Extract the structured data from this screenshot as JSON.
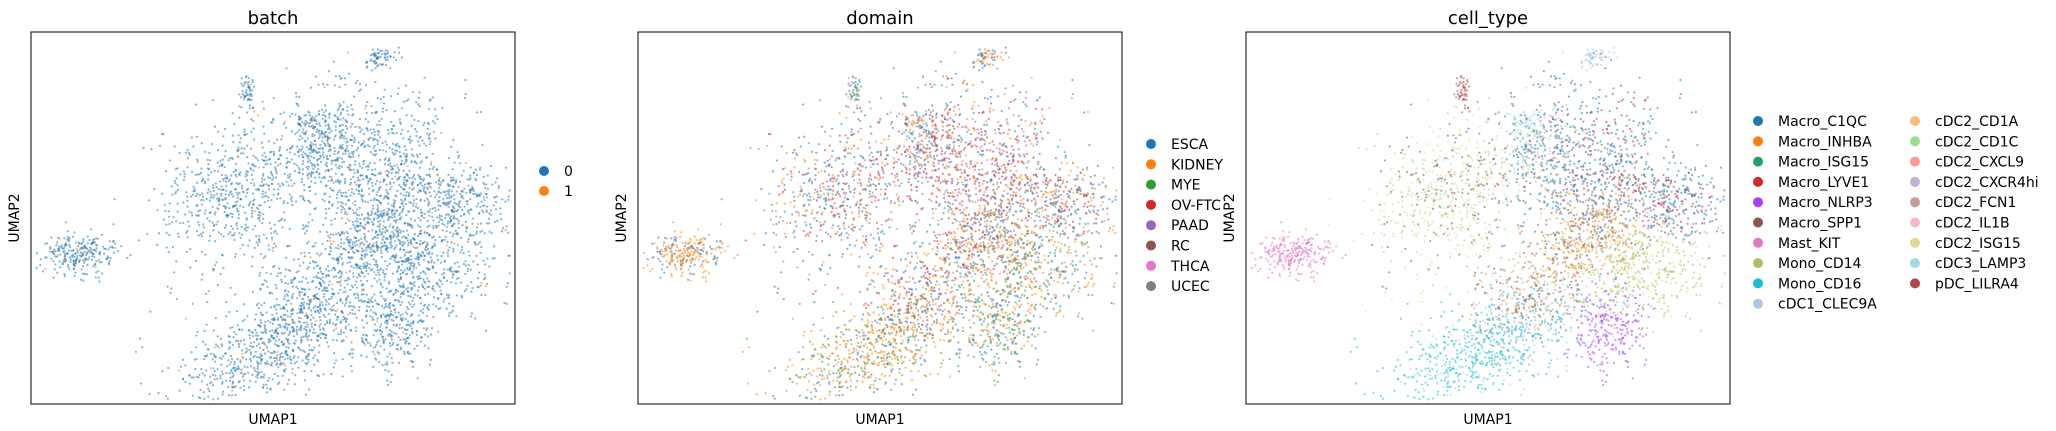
{
  "chart_data": [
    {
      "type": "scatter",
      "title": "batch",
      "xlabel": "UMAP1",
      "ylabel": "UMAP2",
      "grid": false,
      "legend_position": "right",
      "categories": [
        "0",
        "1"
      ],
      "colors": [
        "#1f77b4",
        "#ff7f0e"
      ]
    },
    {
      "type": "scatter",
      "title": "domain",
      "xlabel": "UMAP1",
      "ylabel": "UMAP2",
      "grid": false,
      "legend_position": "right",
      "categories": [
        "ESCA",
        "KIDNEY",
        "MYE",
        "OV-FTC",
        "PAAD",
        "RC",
        "THCA",
        "UCEC"
      ],
      "colors": [
        "#1f77b4",
        "#ff7f0e",
        "#2ca02c",
        "#d62728",
        "#9467bd",
        "#8c564b",
        "#e377c2",
        "#7f7f7f"
      ]
    },
    {
      "type": "scatter",
      "title": "cell_type",
      "xlabel": "UMAP1",
      "ylabel": "UMAP2",
      "grid": false,
      "legend_position": "right",
      "legend_columns": 2,
      "categories": [
        "Macro_C1QC",
        "Macro_INHBA",
        "Macro_ISG15",
        "Macro_LYVE1",
        "Macro_NLRP3",
        "Macro_SPP1",
        "Mast_KIT",
        "Mono_CD14",
        "Mono_CD16",
        "cDC1_CLEC9A",
        "cDC2_CD1A",
        "cDC2_CD1C",
        "cDC2_CXCL9",
        "cDC2_CXCR4hi",
        "cDC2_FCN1",
        "cDC2_IL1B",
        "cDC2_ISG15",
        "cDC3_LAMP3",
        "pDC_LILRA4"
      ],
      "colors": [
        "#1f77b4",
        "#ff7f0e",
        "#279e68",
        "#d62728",
        "#aa40fc",
        "#8c564b",
        "#e377c2",
        "#b5bd61",
        "#17becf",
        "#aec7e8",
        "#ffbb78",
        "#98df8a",
        "#ff9896",
        "#c5b0d5",
        "#c49c94",
        "#f7b6d2",
        "#dbdb8d",
        "#9edae5",
        "#ad494a"
      ]
    }
  ]
}
